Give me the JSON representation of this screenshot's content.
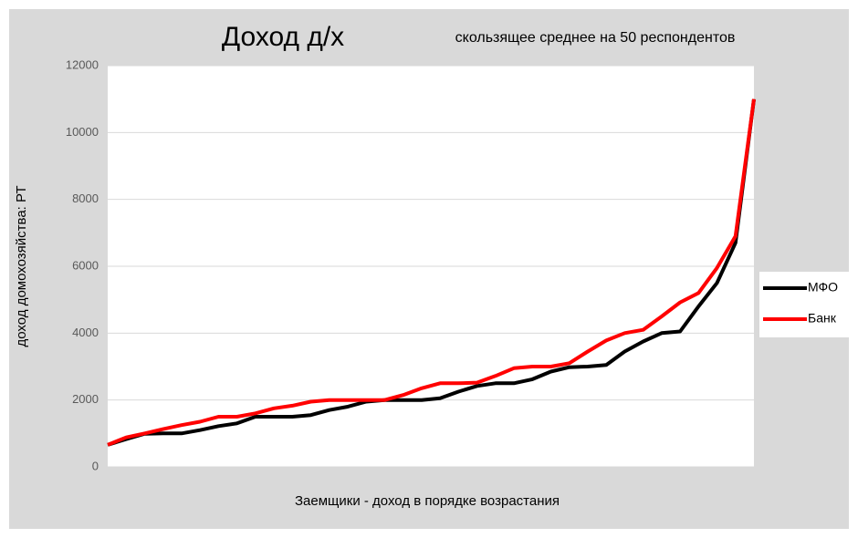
{
  "chart_data": {
    "type": "line",
    "title": "Доход д/х",
    "subtitle": "скользящее среднее на 50 респондентов",
    "y_label": "доход домохозяйства: РТ",
    "x_label": "Заемщики - доход  в порядке возрастания",
    "ylim": [
      0,
      12000
    ],
    "yticks": [
      0,
      2000,
      4000,
      6000,
      8000,
      10000,
      12000
    ],
    "grid": true,
    "legend": "right",
    "series": [
      {
        "name": "МФО",
        "color": "#000000",
        "values": [
          660,
          830,
          990,
          1000,
          1000,
          1100,
          1220,
          1300,
          1500,
          1500,
          1500,
          1550,
          1700,
          1800,
          1950,
          2000,
          2000,
          2000,
          2050,
          2250,
          2420,
          2500,
          2500,
          2620,
          2850,
          2980,
          3000,
          3050,
          3450,
          3750,
          4000,
          4050,
          4800,
          5500,
          6700,
          11000
        ]
      },
      {
        "name": "Банк",
        "color": "#ff0000",
        "values": [
          660,
          880,
          1000,
          1130,
          1250,
          1350,
          1500,
          1500,
          1600,
          1750,
          1830,
          1950,
          2000,
          2000,
          2000,
          2000,
          2150,
          2350,
          2500,
          2500,
          2520,
          2720,
          2950,
          3000,
          3000,
          3100,
          3450,
          3780,
          4000,
          4100,
          4500,
          4920,
          5200,
          5950,
          6900,
          11000
        ]
      }
    ]
  }
}
